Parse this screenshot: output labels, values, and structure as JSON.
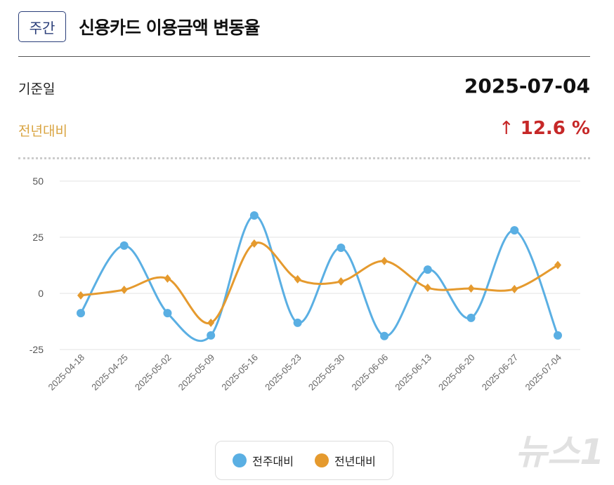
{
  "header": {
    "badge": "주간",
    "title": "신용카드 이용금액 변동율"
  },
  "summary": {
    "date_label": "기준일",
    "date_value": "2025-07-04",
    "yoy_label": "전년대비",
    "yoy_arrow": "↑",
    "yoy_value": "12.6 %"
  },
  "colors": {
    "wow": "#5aafe3",
    "yoy": "#e59a2e",
    "up": "#c62828",
    "yoy_label": "#d9a441"
  },
  "watermark": "뉴스1",
  "chart_data": {
    "type": "line",
    "categories": [
      "2025-04-18",
      "2025-04-25",
      "2025-05-02",
      "2025-05-09",
      "2025-05-16",
      "2025-05-23",
      "2025-05-30",
      "2025-06-06",
      "2025-06-13",
      "2025-06-20",
      "2025-06-27",
      "2025-07-04"
    ],
    "series": [
      {
        "name": "전주대비",
        "marker": "circle",
        "values": [
          -8.8,
          21.3,
          -8.8,
          -18.7,
          34.7,
          -13.1,
          20.3,
          -19.0,
          10.6,
          -10.9,
          28.1,
          -18.7
        ]
      },
      {
        "name": "전년대비",
        "marker": "diamond",
        "values": [
          -0.9,
          1.6,
          6.6,
          -13.1,
          22.2,
          6.3,
          5.3,
          14.4,
          2.5,
          2.2,
          1.9,
          12.6
        ]
      }
    ],
    "yticks": [
      50,
      25,
      0,
      -25
    ],
    "ylim": [
      -25,
      50
    ],
    "grid": true,
    "legend": "bottom"
  }
}
